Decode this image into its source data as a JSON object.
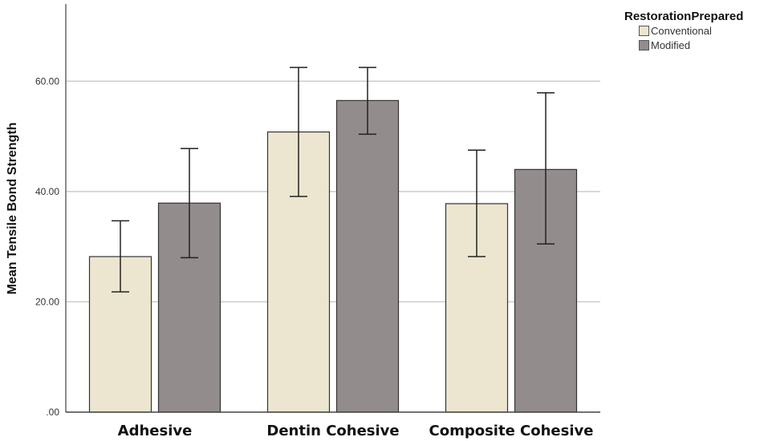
{
  "chart_data": {
    "type": "bar",
    "title": "",
    "xlabel": "",
    "ylabel": "Mean Tensile Bond Strength",
    "ylim": [
      0,
      74
    ],
    "yticks": [
      0,
      20,
      40,
      60
    ],
    "ytick_labels": [
      ".00",
      "20.00",
      "40.00",
      "60.00"
    ],
    "grid": true,
    "categories": [
      "Adhesive",
      "Dentin Cohesive",
      "Composite Cohesive"
    ],
    "legend": {
      "title": "RestorationPrepared",
      "placement": "top-right"
    },
    "series": [
      {
        "name": "Conventional",
        "color": "#ece6d0",
        "values": [
          28.2,
          50.8,
          37.8
        ],
        "error_low": [
          21.8,
          39.1,
          28.2
        ],
        "error_high": [
          34.7,
          62.5,
          47.5
        ]
      },
      {
        "name": "Modified",
        "color": "#928c8c",
        "values": [
          37.9,
          56.5,
          44.0
        ],
        "error_low": [
          28.0,
          50.4,
          30.5
        ],
        "error_high": [
          47.8,
          62.5,
          57.9
        ]
      }
    ]
  }
}
